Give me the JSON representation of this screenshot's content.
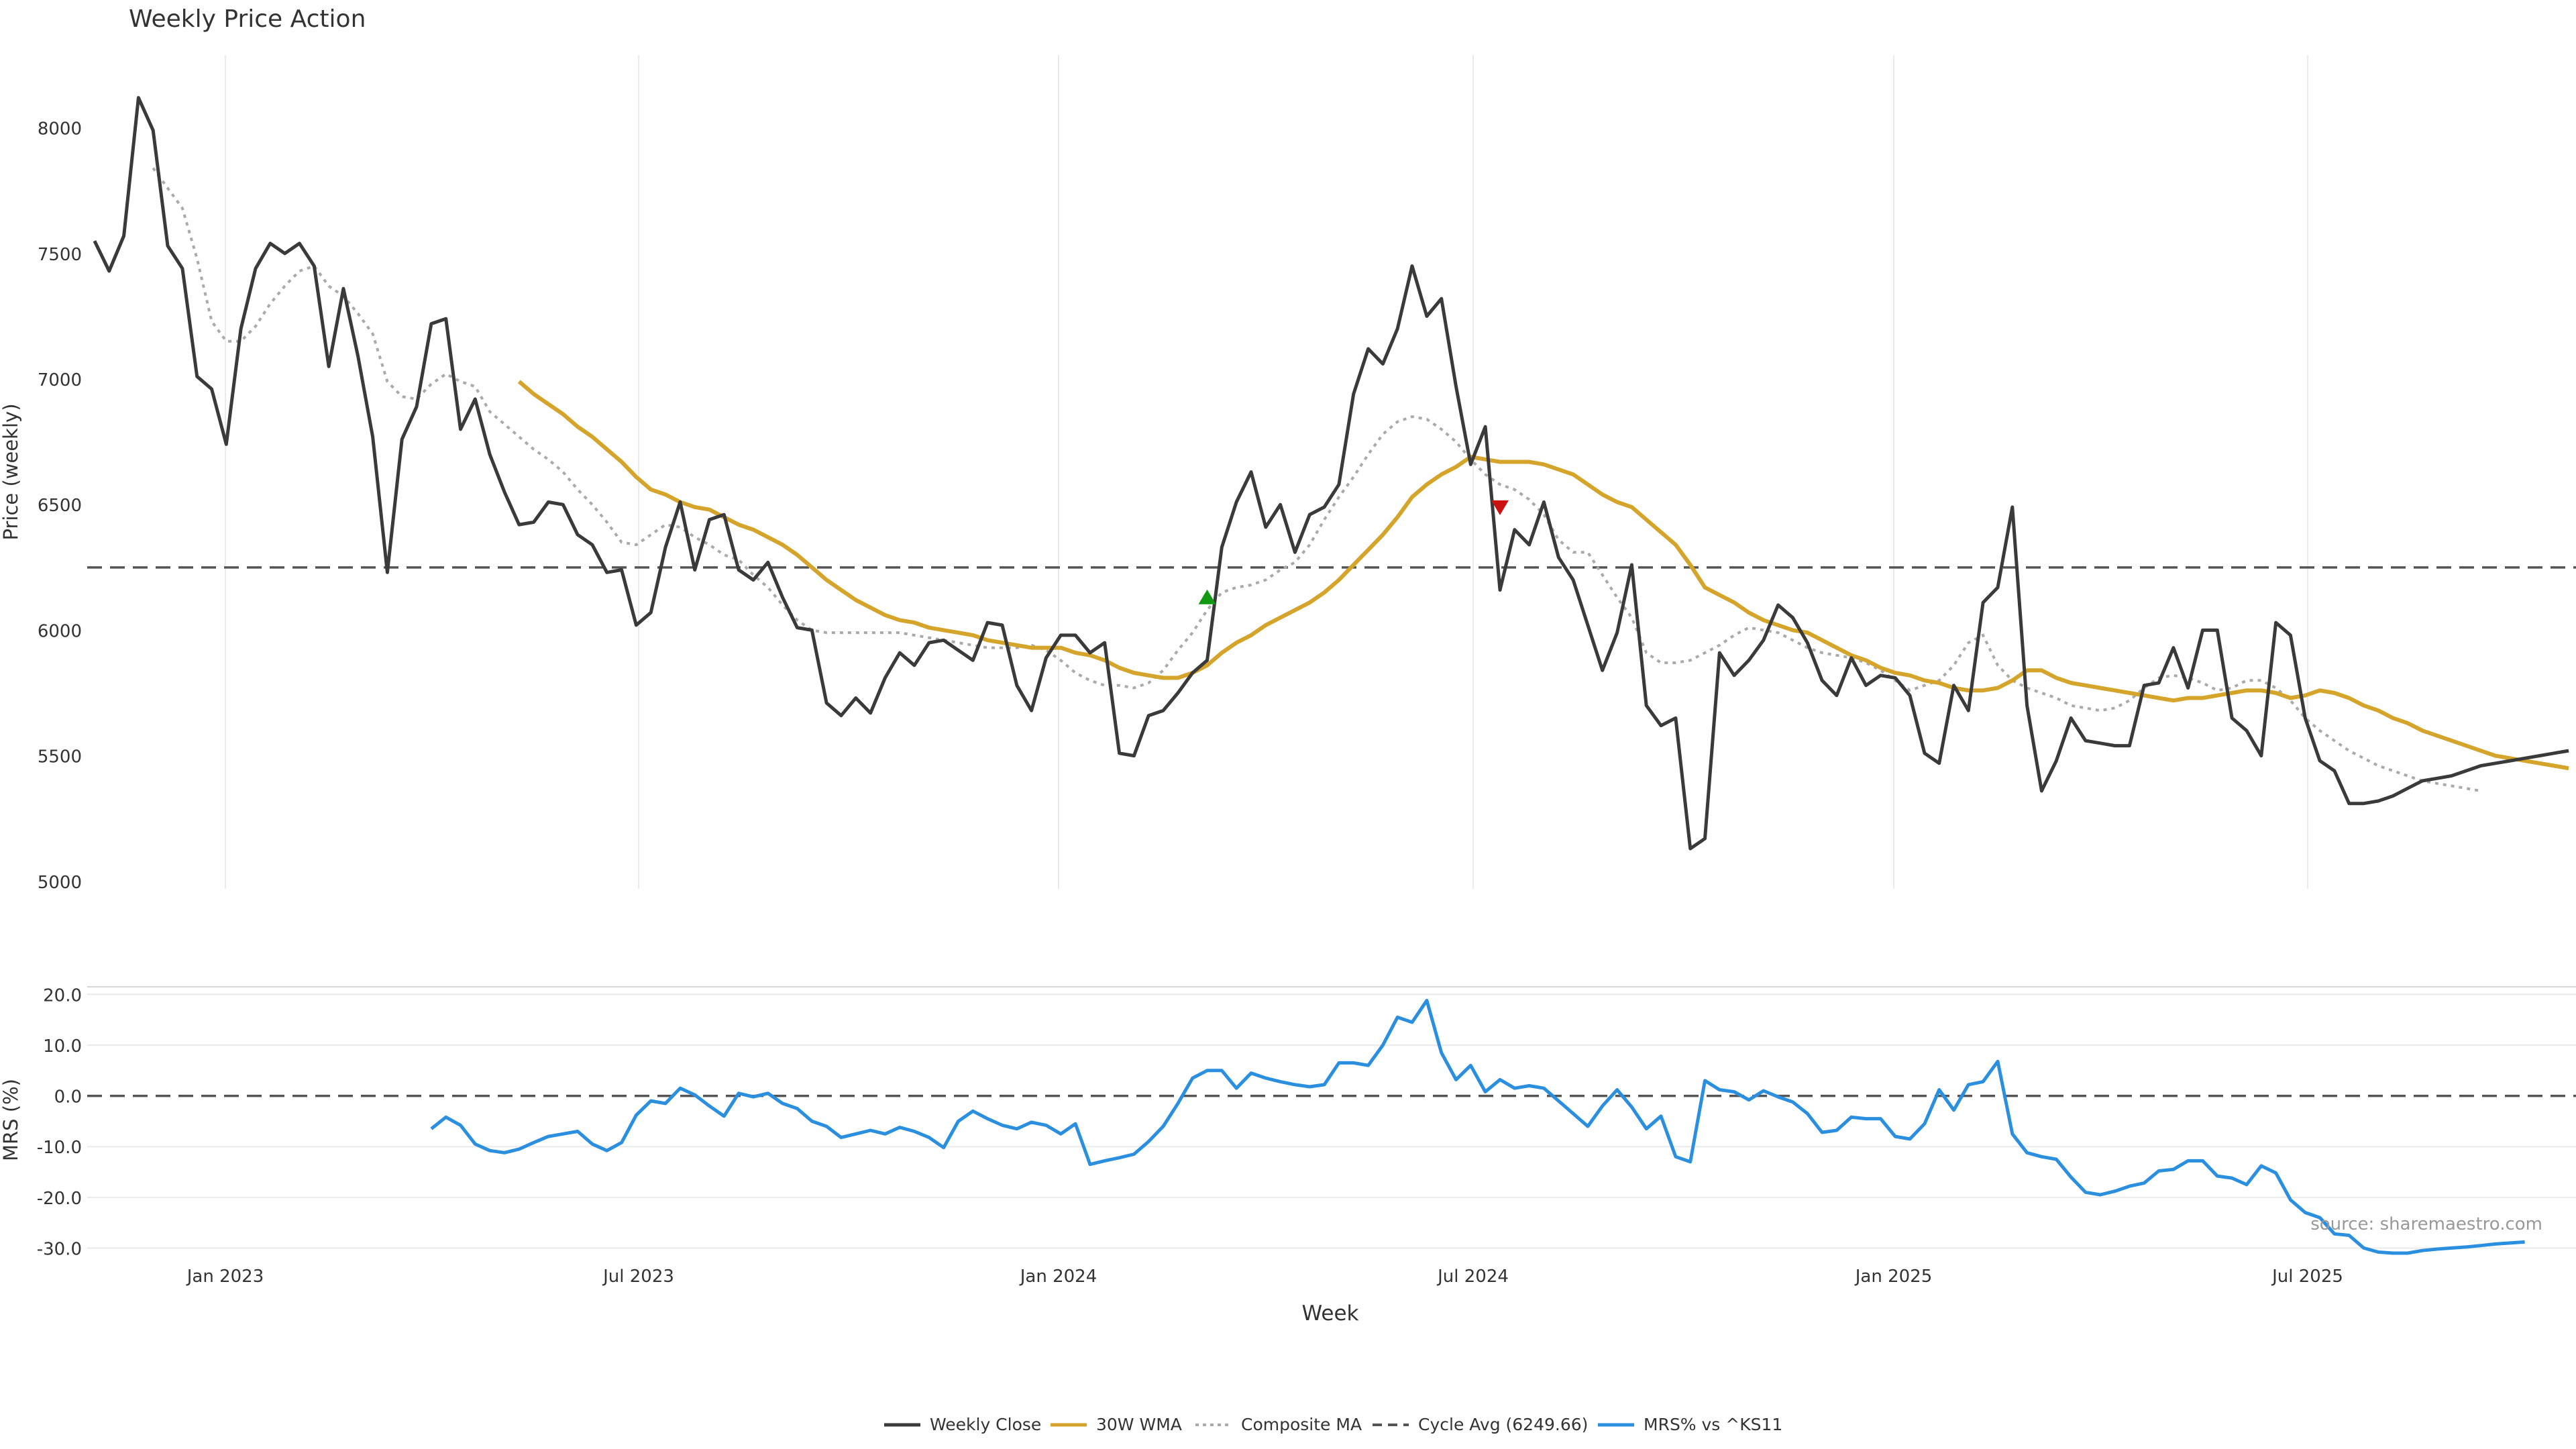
{
  "title": "Weekly Price Action",
  "source_note": "source: sharemaestro.com",
  "colors": {
    "close": "#3a3a3a",
    "wma": "#d4a52a",
    "composite": "#aaaaaa",
    "cycle": "#555555",
    "mrs": "#2b8fe0",
    "buy": "#119911",
    "sell": "#cc1111",
    "grid": "#ebebeb",
    "text": "#333333"
  },
  "legend": {
    "close": "Weekly Close",
    "wma": "30W WMA",
    "composite": "Composite MA",
    "cycle": "Cycle Avg (6249.66)",
    "mrs": "MRS% vs ^KS11"
  },
  "chart_data": [
    {
      "type": "line",
      "title": "Weekly Price Action",
      "ylabel": "Price (weekly)",
      "xlabel": "",
      "x_tick_labels": [
        "Jan 2023",
        "Jul 2023",
        "Jan 2024",
        "Jul 2024",
        "Jan 2025",
        "Jul 2025"
      ],
      "yticks": [
        5000,
        5500,
        6000,
        6500,
        7000,
        7500,
        8000
      ],
      "ylim": [
        4970,
        8290
      ],
      "grid": "vertical",
      "weeks": 170,
      "cycle_avg": 6249.66,
      "series": [
        {
          "name": "Weekly Close",
          "start": 0,
          "values": [
            7550,
            7430,
            7570,
            8120,
            7990,
            7530,
            7440,
            7010,
            6960,
            6740,
            7200,
            7440,
            7540,
            7500,
            7540,
            7450,
            7050,
            7360,
            7090,
            6770,
            6230,
            6760,
            6890,
            7220,
            7240,
            6800,
            6920,
            6700,
            6550,
            6420,
            6430,
            6510,
            6500,
            6380,
            6340,
            6230,
            6240,
            6020,
            6070,
            6330,
            6510,
            6240,
            6440,
            6460,
            6240,
            6200,
            6270,
            6130,
            6010,
            6000,
            5710,
            5660,
            5730,
            5670,
            5810,
            5910,
            5860,
            5950,
            5960,
            5920,
            5880,
            6030,
            6020,
            5780,
            5680,
            5890,
            5980,
            5980,
            5910,
            5950,
            5510,
            5500,
            5660,
            5680,
            5750,
            5830,
            5880,
            6330,
            6510,
            6630,
            6410,
            6500,
            6310,
            6460,
            6490,
            6580,
            6940,
            7120,
            7060,
            7200,
            7450,
            7250,
            7320,
            6970,
            6660,
            6810,
            6160,
            6400,
            6340,
            6510,
            6290,
            6200,
            6020,
            5840,
            5990,
            6260,
            5700,
            5620,
            5650,
            5130,
            5170,
            5910,
            5820,
            5880,
            5960,
            6100,
            6050,
            5950,
            5800,
            5740,
            5890,
            5780,
            5820,
            5810,
            5740,
            5510,
            5470,
            5780,
            5680,
            6110,
            6170,
            6490,
            5700,
            5360,
            5480,
            5650,
            5560,
            5550,
            5540,
            5540,
            5780,
            5790,
            5930,
            5770,
            6000,
            6000,
            5650,
            5600,
            5500,
            6030,
            5980,
            5650,
            5480,
            5440,
            5310,
            5310,
            5320,
            5340,
            5370,
            5400,
            5410,
            5420,
            5440,
            5460,
            5470,
            5480,
            5490,
            5500,
            5510,
            5520
          ]
        },
        {
          "name": "30W WMA",
          "start": 29,
          "values": [
            6990,
            6940,
            6900,
            6860,
            6810,
            6770,
            6720,
            6670,
            6610,
            6560,
            6540,
            6510,
            6490,
            6480,
            6450,
            6420,
            6400,
            6370,
            6340,
            6300,
            6250,
            6200,
            6160,
            6120,
            6090,
            6060,
            6040,
            6030,
            6010,
            6000,
            5990,
            5980,
            5960,
            5950,
            5940,
            5930,
            5930,
            5930,
            5910,
            5900,
            5880,
            5850,
            5830,
            5820,
            5810,
            5810,
            5830,
            5860,
            5910,
            5950,
            5980,
            6020,
            6050,
            6080,
            6110,
            6150,
            6200,
            6260,
            6320,
            6380,
            6450,
            6530,
            6580,
            6620,
            6650,
            6690,
            6680,
            6670,
            6670,
            6670,
            6660,
            6640,
            6620,
            6580,
            6540,
            6510,
            6490,
            6440,
            6390,
            6340,
            6260,
            6170,
            6140,
            6110,
            6070,
            6040,
            6020,
            6000,
            5990,
            5960,
            5930,
            5900,
            5880,
            5850,
            5830,
            5820,
            5800,
            5790,
            5770,
            5760,
            5760,
            5770,
            5800,
            5840,
            5840,
            5810,
            5790,
            5780,
            5770,
            5760,
            5750,
            5740,
            5730,
            5720,
            5730,
            5730,
            5740,
            5750,
            5760,
            5760,
            5750,
            5730,
            5740,
            5760,
            5750,
            5730,
            5700,
            5680,
            5650,
            5630,
            5600,
            5580,
            5560,
            5540,
            5520,
            5500,
            5490,
            5480,
            5470,
            5460,
            5450
          ]
        },
        {
          "name": "Composite MA",
          "start": 4,
          "values": [
            7840,
            7760,
            7680,
            7480,
            7230,
            7150,
            7150,
            7210,
            7300,
            7370,
            7430,
            7450,
            7370,
            7330,
            7260,
            7180,
            6990,
            6930,
            6920,
            6980,
            7020,
            6990,
            6970,
            6870,
            6820,
            6770,
            6720,
            6680,
            6630,
            6560,
            6500,
            6430,
            6350,
            6340,
            6380,
            6420,
            6410,
            6370,
            6340,
            6300,
            6280,
            6220,
            6170,
            6100,
            6040,
            6000,
            5990,
            5990,
            5990,
            5990,
            5990,
            5990,
            5980,
            5970,
            5960,
            5950,
            5940,
            5930,
            5930,
            5930,
            5940,
            5920,
            5880,
            5830,
            5800,
            5780,
            5780,
            5770,
            5790,
            5840,
            5920,
            5990,
            6080,
            6150,
            6170,
            6180,
            6200,
            6240,
            6270,
            6340,
            6440,
            6530,
            6610,
            6700,
            6780,
            6830,
            6850,
            6840,
            6800,
            6750,
            6680,
            6620,
            6580,
            6560,
            6520,
            6460,
            6360,
            6310,
            6310,
            6220,
            6130,
            6050,
            5910,
            5870,
            5870,
            5880,
            5910,
            5940,
            5980,
            6010,
            6000,
            5990,
            5960,
            5930,
            5910,
            5900,
            5890,
            5870,
            5840,
            5800,
            5760,
            5780,
            5800,
            5860,
            5950,
            5980,
            5860,
            5800,
            5770,
            5750,
            5730,
            5700,
            5690,
            5680,
            5690,
            5720,
            5770,
            5810,
            5820,
            5810,
            5790,
            5760,
            5770,
            5800,
            5800,
            5770,
            5720,
            5650,
            5600,
            5560,
            5520,
            5490,
            5460,
            5440,
            5420,
            5400,
            5390,
            5380,
            5370,
            5360
          ]
        }
      ],
      "signals": [
        {
          "type": "buy",
          "week": 76,
          "value": 6130
        },
        {
          "type": "sell",
          "week": 96,
          "value": 6490
        }
      ]
    },
    {
      "type": "line",
      "ylabel": "MRS (%)",
      "xlabel": "Week",
      "x_tick_labels": [
        "Jan 2023",
        "Jul 2023",
        "Jan 2024",
        "Jul 2024",
        "Jan 2025",
        "Jul 2025"
      ],
      "yticks": [
        "20.0",
        "10.0",
        "0.0",
        "-10.0",
        "-20.0",
        "-30.0"
      ],
      "ylim": [
        -31,
        21.5
      ],
      "grid": "horizontal",
      "reference_line": 0,
      "series": [
        {
          "name": "MRS% vs ^KS11",
          "start": 23,
          "values": [
            -6.5,
            -4.2,
            -5.8,
            -9.5,
            -10.8,
            -11.2,
            -10.5,
            -9.2,
            -8.0,
            -7.5,
            -7.0,
            -9.5,
            -10.8,
            -9.2,
            -3.8,
            -1.0,
            -1.5,
            1.5,
            0.2,
            -2.0,
            -4.0,
            0.5,
            -0.2,
            0.5,
            -1.5,
            -2.5,
            -5.0,
            -6.0,
            -8.2,
            -7.5,
            -6.8,
            -7.5,
            -6.2,
            -7.0,
            -8.2,
            -10.2,
            -5.0,
            -3.0,
            -4.5,
            -5.8,
            -6.5,
            -5.2,
            -5.8,
            -7.5,
            -5.5,
            -13.5,
            -12.8,
            -12.2,
            -11.5,
            -9.0,
            -6.0,
            -1.5,
            3.5,
            5.0,
            5.0,
            1.5,
            4.5,
            3.5,
            2.8,
            2.2,
            1.8,
            2.2,
            6.5,
            6.5,
            6.0,
            10.0,
            15.5,
            14.5,
            18.8,
            8.5,
            3.2,
            6.0,
            0.8,
            3.2,
            1.5,
            2.0,
            1.5,
            -1.0,
            -3.5,
            -6.0,
            -2.0,
            1.2,
            -2.2,
            -6.5,
            -4.0,
            -12.0,
            -13.0,
            3.0,
            1.2,
            0.8,
            -0.8,
            1.0,
            -0.2,
            -1.2,
            -3.5,
            -7.2,
            -6.8,
            -4.2,
            -4.5,
            -4.5,
            -8.0,
            -8.5,
            -5.5,
            1.2,
            -2.8,
            2.2,
            2.8,
            6.8,
            -7.5,
            -11.2,
            -12.0,
            -12.5,
            -16.0,
            -19.0,
            -19.5,
            -18.8,
            -17.8,
            -17.2,
            -14.8,
            -14.5,
            -12.8,
            -12.8,
            -15.8,
            -16.2,
            -17.5,
            -13.8,
            -15.2,
            -20.5,
            -23.0,
            -24.0,
            -27.2,
            -27.5,
            -30.0,
            -30.8,
            -31.0,
            -31.0,
            -30.5,
            -30.2,
            -30.0,
            -29.8,
            -29.5,
            -29.2,
            -29.0,
            -28.8
          ]
        }
      ]
    }
  ]
}
